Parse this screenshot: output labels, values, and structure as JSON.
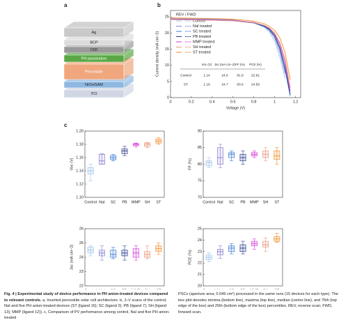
{
  "panel_labels": [
    "a",
    "b",
    "c"
  ],
  "stack": {
    "layers": [
      "Ag",
      "BCP",
      "C60",
      "PH passivation",
      "Perovskite",
      "NiOx/SAM",
      "ITO"
    ]
  },
  "table": {
    "header": [
      "Voc (V)",
      "Jsc (mA cm−2)",
      "FF (%)",
      "PCE (%)"
    ],
    "rows": [
      [
        "Control",
        "1.14",
        "24.5",
        "81.9",
        "22.91"
      ],
      [
        "ST",
        "1.19",
        "24.7",
        "83.6",
        "24.56"
      ]
    ]
  },
  "caption": {
    "left_title": "Fig. 4 | Experimental study of device performance in PH anion-treated devices compared to relevant controls.",
    "left_text": "a, Inverted perovskite solar cell architecture. b, J–V scans of the control, NaI and five PH anion-treated devices (ST (ligand 16); SC (ligand 2); PB (ligand 7); SH (ligand 13); MMP (ligand 12)). c, Comparison of PV performance among control, NaI and five PH anion-treated",
    "right_text": "PSCs (aperture area, 0.049 cm²) processed in the same runs (15 devices for each type). The box plot denotes minima (bottom line), maxima (top line), median (centre line), and 75th (top edge of the box) and 25th (bottom edge of the box) percentiles. REV, reverse scan; FWD, forward scan."
  },
  "chart_data": [
    {
      "type": "line",
      "xlabel": "Voltage (V)",
      "ylabel": "Current density (mA cm−2)",
      "legend_header": "REV / FWD",
      "x": [
        0,
        0.2,
        0.4,
        0.6,
        0.8,
        0.9,
        0.95,
        1.0,
        1.05,
        1.1,
        1.15,
        1.2
      ],
      "xlim": [
        0,
        1.25
      ],
      "xticks": [
        0,
        0.2,
        0.4,
        0.6,
        0.8,
        1,
        1.2
      ],
      "ylim": [
        0,
        27
      ],
      "yticks": [
        0,
        5,
        10,
        15,
        20,
        25
      ],
      "series": [
        {
          "name": "Control",
          "color": "#9cc0ea",
          "values": [
            24.5,
            24.4,
            24.3,
            24.1,
            23.2,
            21.8,
            20.3,
            17.5,
            12.5,
            6,
            null,
            null
          ]
        },
        {
          "name": "NaI treated",
          "color": "#8a7fd0",
          "values": [
            24.4,
            24.3,
            24.2,
            24.0,
            23.2,
            22.0,
            20.8,
            18.5,
            14,
            7.5,
            null,
            null
          ]
        },
        {
          "name": "SC treated",
          "color": "#3a7bd5",
          "values": [
            24.2,
            24.1,
            24.0,
            23.8,
            23.1,
            22.0,
            21,
            19,
            15,
            8.5,
            0.5,
            null
          ]
        },
        {
          "name": "PB treated",
          "color": "#2b3a8c",
          "values": [
            24.3,
            24.2,
            24.1,
            23.9,
            23.2,
            22.2,
            21.2,
            19.3,
            15.5,
            9.5,
            1,
            null
          ]
        },
        {
          "name": "MMP treated",
          "color": "#d63bd6",
          "values": [
            24.3,
            24.2,
            24.1,
            23.9,
            23.3,
            22.4,
            21.5,
            19.8,
            16.5,
            11,
            2,
            null
          ]
        },
        {
          "name": "SH treated",
          "color": "#e8957a",
          "values": [
            24.2,
            24.1,
            24.0,
            23.8,
            23.2,
            22.4,
            21.6,
            20,
            17,
            12,
            3,
            null
          ]
        },
        {
          "name": "ST treated",
          "color": "#f08a24",
          "values": [
            24.7,
            24.6,
            24.5,
            24.3,
            23.7,
            22.9,
            22.1,
            20.8,
            18.5,
            14,
            5.5,
            null
          ]
        }
      ]
    },
    {
      "type": "box",
      "ylabel": "Voc (V)",
      "categories": [
        "Control",
        "NaI",
        "SC",
        "PB",
        "MMP",
        "SH",
        "ST"
      ],
      "colors": [
        "#9cc0ea",
        "#8a7fd0",
        "#3a7bd5",
        "#2b3a8c",
        "#d63bd6",
        "#e8957a",
        "#f08a24"
      ],
      "ylim": [
        1.1,
        1.2
      ],
      "yticks": [
        {
          "value": 1.1,
          "label": "1.10"
        },
        1.12,
        1.14,
        1.16,
        1.18,
        {
          "value": 1.2,
          "label": "1.20"
        }
      ],
      "boxes": [
        {
          "min": 1.125,
          "q1": 1.135,
          "median": 1.14,
          "q3": 1.145,
          "max": 1.15
        },
        {
          "min": 1.15,
          "q1": 1.15,
          "median": 1.155,
          "q3": 1.165,
          "max": 1.166
        },
        {
          "min": 1.155,
          "q1": 1.157,
          "median": 1.16,
          "q3": 1.163,
          "max": 1.165
        },
        {
          "min": 1.163,
          "q1": 1.166,
          "median": 1.17,
          "q3": 1.173,
          "max": 1.177
        },
        {
          "min": 1.176,
          "q1": 1.178,
          "median": 1.18,
          "q3": 1.181,
          "max": 1.182
        },
        {
          "min": 1.175,
          "q1": 1.177,
          "median": 1.18,
          "q3": 1.182,
          "max": 1.183
        },
        {
          "min": 1.18,
          "q1": 1.182,
          "median": 1.185,
          "q3": 1.188,
          "max": 1.19
        }
      ]
    },
    {
      "type": "box",
      "ylabel": "FF (%)",
      "categories": [
        "Control",
        "NaI",
        "SC",
        "PB",
        "MMP",
        "SH",
        "ST"
      ],
      "colors": [
        "#9cc0ea",
        "#8a7fd0",
        "#3a7bd5",
        "#2b3a8c",
        "#d63bd6",
        "#e8957a",
        "#f08a24"
      ],
      "ylim": [
        70,
        90
      ],
      "yticks": [
        70,
        75,
        80,
        85,
        90
      ],
      "boxes": [
        {
          "min": 79,
          "q1": 79.5,
          "median": 80.5,
          "q3": 81,
          "max": 82
        },
        {
          "min": 79,
          "q1": 80,
          "median": 82,
          "q3": 85,
          "max": 86
        },
        {
          "min": 81,
          "q1": 82,
          "median": 83,
          "q3": 83.5,
          "max": 84
        },
        {
          "min": 80,
          "q1": 81,
          "median": 82,
          "q3": 83,
          "max": 84
        },
        {
          "min": 82,
          "q1": 82.5,
          "median": 83,
          "q3": 83.5,
          "max": 84
        },
        {
          "min": 81,
          "q1": 82,
          "median": 83,
          "q3": 84,
          "max": 85
        },
        {
          "min": 80,
          "q1": 81.5,
          "median": 82.5,
          "q3": 84,
          "max": 85
        }
      ]
    },
    {
      "type": "box",
      "ylabel": "Jsc (mA cm−2)",
      "categories": [
        "Control",
        "NaI",
        "SC",
        "PB",
        "MMP",
        "SH",
        "ST"
      ],
      "colors": [
        "#9cc0ea",
        "#8a7fd0",
        "#3a7bd5",
        "#2b3a8c",
        "#d63bd6",
        "#e8957a",
        "#f08a24"
      ],
      "ylim": [
        22,
        26
      ],
      "yticks": [
        22,
        23,
        24,
        25,
        26
      ],
      "boxes": [
        {
          "min": 24.1,
          "q1": 24.3,
          "median": 24.5,
          "q3": 24.7,
          "max": 24.8
        },
        {
          "min": 23.8,
          "q1": 24.1,
          "median": 24.3,
          "q3": 24.5,
          "max": 24.8
        },
        {
          "min": 23.9,
          "q1": 24.0,
          "median": 24.2,
          "q3": 24.5,
          "max": 24.7
        },
        {
          "min": 23.8,
          "q1": 24.1,
          "median": 24.3,
          "q3": 24.5,
          "max": 24.8
        },
        {
          "min": 23.8,
          "q1": 24.0,
          "median": 24.3,
          "q3": 24.6,
          "max": 24.8
        },
        {
          "min": 23.9,
          "q1": 24.0,
          "median": 24.2,
          "q3": 24.4,
          "max": 24.8
        },
        {
          "min": 24.2,
          "q1": 24.4,
          "median": 24.6,
          "q3": 24.8,
          "max": 25.0
        }
      ]
    },
    {
      "type": "box",
      "ylabel": "PCE (%)",
      "categories": [
        "Control",
        "NaI",
        "SC",
        "PB",
        "MMP",
        "SH",
        "ST"
      ],
      "colors": [
        "#9cc0ea",
        "#8a7fd0",
        "#3a7bd5",
        "#2b3a8c",
        "#d63bd6",
        "#e8957a",
        "#f08a24"
      ],
      "ylim": [
        20,
        25
      ],
      "yticks": [
        20,
        21,
        22,
        23,
        24,
        25
      ],
      "boxes": [
        {
          "min": 22.1,
          "q1": 22.3,
          "median": 22.5,
          "q3": 22.7,
          "max": 22.9
        },
        {
          "min": 22.4,
          "q1": 22.7,
          "median": 23.0,
          "q3": 23.2,
          "max": 23.5
        },
        {
          "min": 22.8,
          "q1": 23.0,
          "median": 23.3,
          "q3": 23.5,
          "max": 23.7
        },
        {
          "min": 22.8,
          "q1": 23.0,
          "median": 23.3,
          "q3": 23.6,
          "max": 23.9
        },
        {
          "min": 23.2,
          "q1": 23.5,
          "median": 23.7,
          "q3": 23.9,
          "max": 24.1
        },
        {
          "min": 23.0,
          "q1": 23.4,
          "median": 23.6,
          "q3": 23.9,
          "max": 24.2
        },
        {
          "min": 23.8,
          "q1": 23.9,
          "median": 24.1,
          "q3": 24.3,
          "max": 24.6
        }
      ]
    }
  ]
}
